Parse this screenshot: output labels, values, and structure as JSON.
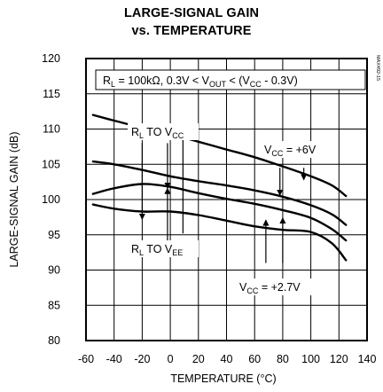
{
  "chart_data": {
    "type": "line",
    "title": "LARGE-SIGNAL GAIN",
    "subtitle": "vs. TEMPERATURE",
    "xlabel": "TEMPERATURE (°C)",
    "ylabel": "LARGE-SIGNAL GAIN (dB)",
    "xlim": [
      -60,
      140
    ],
    "ylim": [
      80,
      120
    ],
    "xticks": [
      -60,
      -40,
      -20,
      0,
      20,
      40,
      60,
      80,
      100,
      120,
      140
    ],
    "yticks": [
      80,
      85,
      90,
      95,
      100,
      105,
      110,
      115,
      120
    ],
    "grid": true,
    "part_number": "MAX492-15",
    "condition": {
      "main": "R",
      "main_sub": "L",
      "rest1": " = 100kΩ, 0.3V < V",
      "sub2": "OUT",
      "rest2": " < (V",
      "sub3": "CC",
      "rest3": " - 0.3V)"
    },
    "annotations": {
      "rl_vcc": {
        "main": "R",
        "sub1": "L",
        "mid": " TO V",
        "sub2": "CC"
      },
      "rl_vee": {
        "main": "R",
        "sub1": "L",
        "mid": " TO V",
        "sub2": "EE"
      },
      "vcc_6v": {
        "main": "V",
        "sub": "CC",
        "rest": " = +6V"
      },
      "vcc_27v": {
        "main": "V",
        "sub": "CC",
        "rest": " = +2.7V"
      }
    },
    "series": [
      {
        "x": [
          -55,
          -40,
          -20,
          0,
          20,
          40,
          60,
          80,
          100,
          115,
          125
        ],
        "values": [
          112,
          111.2,
          110.2,
          109.3,
          108.2,
          107.1,
          106,
          104.7,
          103.3,
          102,
          100.5
        ]
      },
      {
        "x": [
          -55,
          -40,
          -20,
          0,
          20,
          40,
          60,
          80,
          100,
          115,
          125
        ],
        "values": [
          105.4,
          105,
          104.2,
          103.3,
          102.6,
          102,
          101.3,
          100.4,
          99.2,
          97.9,
          96.4
        ]
      },
      {
        "x": [
          -55,
          -40,
          -20,
          0,
          20,
          40,
          60,
          80,
          100,
          115,
          125
        ],
        "values": [
          100.8,
          101.6,
          102.2,
          101.8,
          100.9,
          100.1,
          99.4,
          98.5,
          97.4,
          95.8,
          94.2
        ]
      },
      {
        "x": [
          -55,
          -40,
          -20,
          0,
          20,
          40,
          60,
          80,
          100,
          115,
          125
        ],
        "values": [
          99.3,
          98.7,
          98.3,
          98.3,
          97.8,
          97,
          96.2,
          95.7,
          95.4,
          93.8,
          91.4
        ]
      }
    ]
  }
}
